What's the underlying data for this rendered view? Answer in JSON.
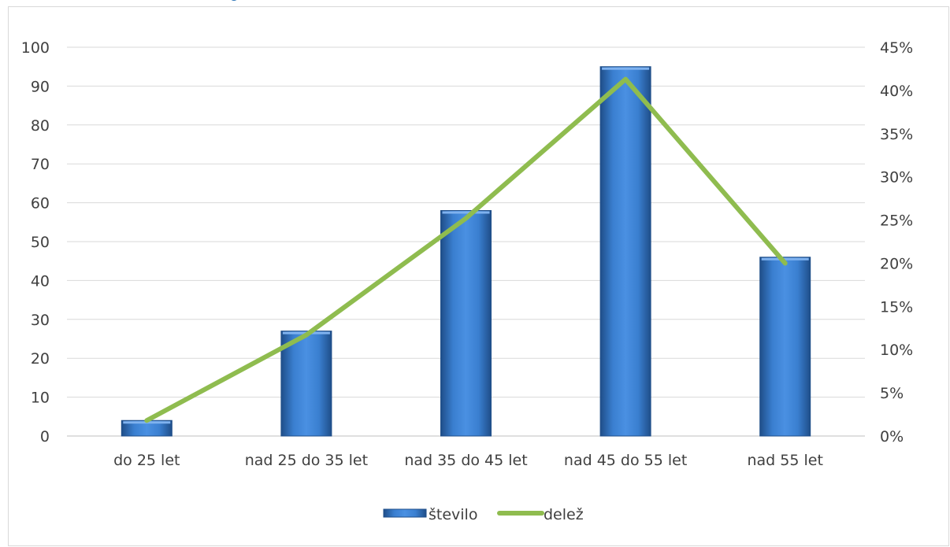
{
  "chart_data": {
    "type": "bar",
    "categories": [
      "do 25 let",
      "nad 25 do 35 let",
      "nad 35 do 45 let",
      "nad 45 do 55 let",
      "nad 55 let"
    ],
    "series": [
      {
        "name": "število",
        "type": "bar",
        "axis": "left",
        "values": [
          4,
          27,
          58,
          95,
          46
        ],
        "color": "#2e75b6"
      },
      {
        "name": "delež",
        "type": "line",
        "axis": "right",
        "values": [
          0.018,
          0.117,
          0.252,
          0.413,
          0.2
        ],
        "color": "#8fbc4f"
      }
    ],
    "y_left": {
      "min": 0,
      "max": 100,
      "ticks": [
        "0",
        "10",
        "20",
        "30",
        "40",
        "50",
        "60",
        "70",
        "80",
        "90",
        "100"
      ]
    },
    "y_right": {
      "min": 0,
      "max": 0.45,
      "ticks": [
        "0%",
        "5%",
        "10%",
        "15%",
        "20%",
        "25%",
        "30%",
        "35%",
        "40%",
        "45%"
      ]
    },
    "grid": true,
    "legend_position": "bottom"
  }
}
